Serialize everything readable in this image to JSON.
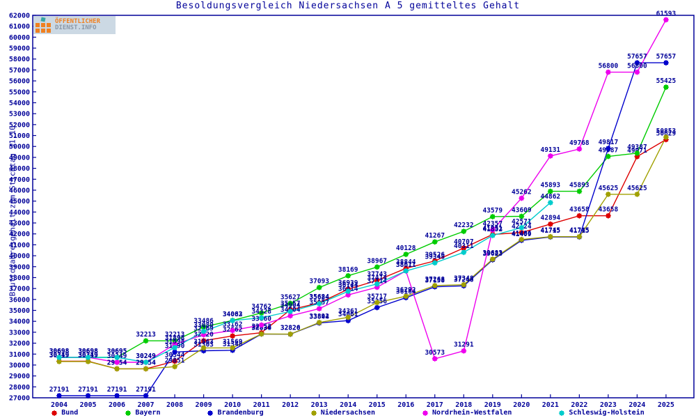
{
  "title": "Besoldungsvergleich Niedersachsen A 5 gemitteltes Gehalt",
  "logo": {
    "line1": "ÖFFENTLICHER",
    "line2": "DIENST.INFO"
  },
  "y_axis": {
    "label": "Bruttojahresgehalt zum Stichtag 31.10.",
    "min": 27000,
    "max": 62000,
    "step": 1000
  },
  "colors": {
    "axis_text": "#000099",
    "frame": "#000099",
    "background": "#ffffff",
    "bund": "#dd0000",
    "bayern": "#00cc00",
    "brandenburg": "#0000cc",
    "niedersachsen": "#a0a000",
    "nordrhein_westfalen": "#ee00ee",
    "schleswig_holstein": "#00cccc"
  },
  "chart_data": {
    "type": "line",
    "title": "Besoldungsvergleich Niedersachsen A 5 gemitteltes Gehalt",
    "xlabel": "",
    "ylabel": "Bruttojahresgehalt zum Stichtag 31.10.",
    "ylim": [
      27000,
      62000
    ],
    "grid": false,
    "legend_position": "bottom",
    "x": [
      2004,
      2005,
      2006,
      2007,
      2008,
      2009,
      2010,
      2011,
      2012,
      2013,
      2014,
      2015,
      2016,
      2017,
      2018,
      2019,
      2020,
      2021,
      2022,
      2023,
      2024,
      2025
    ],
    "series": [
      {
        "name": "Bund",
        "color": "#dd0000",
        "values": [
          30349,
          30349,
          29654,
          29654,
          30344,
          32220,
          32662,
          32953,
          35057,
          35684,
          36939,
          37743,
          38844,
          39526,
          40707,
          41951,
          42124,
          42894,
          43658,
          43658,
          49071,
          50629
        ]
      },
      {
        "name": "Bayern",
        "color": "#00cc00",
        "values": [
          30698,
          30698,
          30695,
          32213,
          32213,
          33486,
          34083,
          34762,
          35627,
          37093,
          38169,
          38967,
          40128,
          41267,
          42232,
          43579,
          43609,
          45893,
          45893,
          49087,
          49387,
          55425
        ]
      },
      {
        "name": "Brandenburg",
        "color": "#0000cc",
        "values": [
          27191,
          27191,
          27191,
          27191,
          31190,
          31303,
          31348,
          32834,
          32820,
          33844,
          34061,
          35256,
          36164,
          37158,
          37248,
          39623,
          41409,
          41715,
          41715,
          49817,
          57657,
          57657
        ]
      },
      {
        "name": "Niedersachsen",
        "color": "#a0a000",
        "values": [
          30319,
          30319,
          29654,
          29654,
          29851,
          31563,
          31569,
          32839,
          32826,
          33892,
          34361,
          35717,
          36292,
          37268,
          37348,
          39683,
          41486,
          41745,
          41745,
          45625,
          45625,
          50853
        ]
      },
      {
        "name": "Nordrhein-Westfalen",
        "color": "#ee00ee",
        "values": [
          30698,
          30698,
          30249,
          30249,
          31898,
          32769,
          33162,
          33660,
          34504,
          35157,
          36414,
          37114,
          38611,
          30573,
          31291,
          42357,
          45262,
          49131,
          49768,
          56800,
          56800,
          61593
        ]
      },
      {
        "name": "Schleswig-Holstein",
        "color": "#00cccc",
        "values": [
          30698,
          30698,
          30695,
          30249,
          31598,
          33080,
          34062,
          34328,
          34904,
          35624,
          36744,
          37414,
          38611,
          39348,
          40311,
          41852,
          42571,
          44862,
          null,
          null,
          null,
          null
        ]
      }
    ]
  },
  "legend": [
    {
      "label": "Bund",
      "color": "#dd0000"
    },
    {
      "label": "Bayern",
      "color": "#00cc00"
    },
    {
      "label": "Brandenburg",
      "color": "#0000cc"
    },
    {
      "label": "Niedersachsen",
      "color": "#a0a000"
    },
    {
      "label": "Nordrhein-Westfalen",
      "color": "#ee00ee"
    },
    {
      "label": "Schleswig-Holstein",
      "color": "#00cccc"
    }
  ]
}
